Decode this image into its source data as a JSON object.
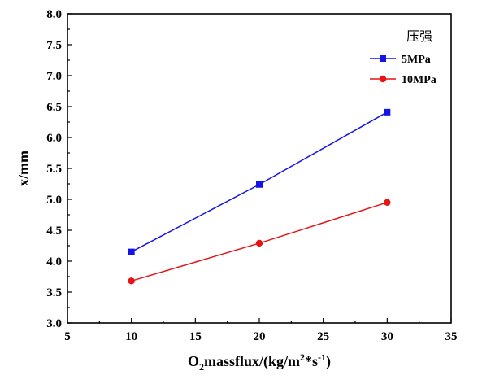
{
  "chart_data": {
    "type": "line",
    "xlabel": {
      "main": "O",
      "sub": "2",
      "text1": "massflux/(kg/m",
      "sup1": "2",
      "text2": "*s",
      "sup2": "-1",
      "text3": ")"
    },
    "ylabel": "x/mm",
    "xlim": [
      5,
      35
    ],
    "ylim": [
      3.0,
      8.0
    ],
    "xticks": [
      "5",
      "10",
      "15",
      "20",
      "25",
      "30",
      "35"
    ],
    "yticks": [
      "3.0",
      "3.5",
      "4.0",
      "4.5",
      "5.0",
      "5.5",
      "6.0",
      "6.5",
      "7.0",
      "7.5",
      "8.0"
    ],
    "grid": false,
    "legend": {
      "title": "压强",
      "position": "top-right"
    },
    "series": [
      {
        "name": "5MPa",
        "color": "#1414e6",
        "marker": "square",
        "x": [
          10,
          20,
          30
        ],
        "y": [
          4.15,
          5.24,
          6.41
        ]
      },
      {
        "name": "10MPa",
        "color": "#e61414",
        "marker": "circle",
        "x": [
          10,
          20,
          30
        ],
        "y": [
          3.68,
          4.29,
          4.95
        ]
      }
    ]
  }
}
